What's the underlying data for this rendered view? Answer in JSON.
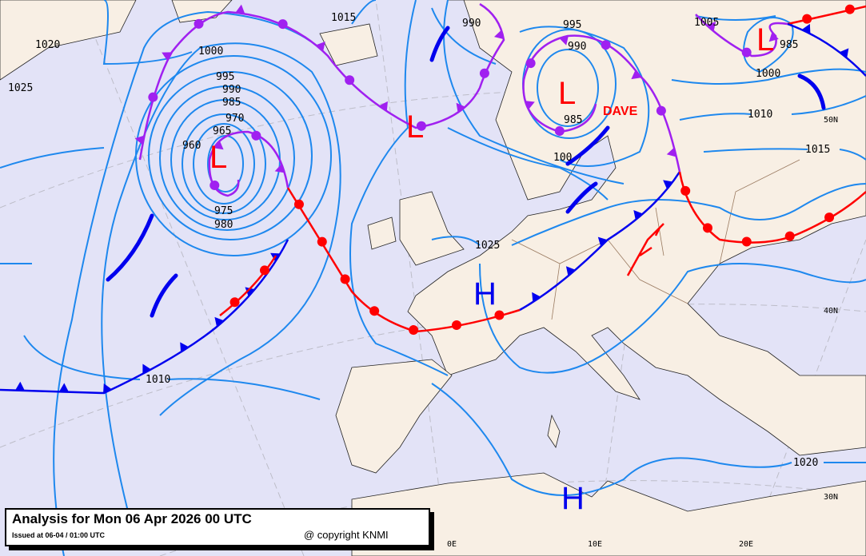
{
  "title": "Analysis for Mon 06 Apr 2026 00 UTC",
  "issued": "Issued at 06-04 / 01:00 UTC",
  "copyright": "@ copyright KNMI",
  "colors": {
    "sea": "#e3e3f7",
    "land": "#f8efe4",
    "isobar": "#1e88ee",
    "cold_front": "#0000ee",
    "warm_front": "#ff0000",
    "occluded_front": "#a020f0"
  },
  "isobar_labels": [
    "1020",
    "1025",
    "1000",
    "995",
    "990",
    "985",
    "970",
    "965",
    "960",
    "975",
    "980",
    "1015",
    "990",
    "995",
    "990",
    "985",
    "1005",
    "1000",
    "1010",
    "1015",
    "1025",
    "1010",
    "1020",
    "100"
  ],
  "pressure_centers": [
    {
      "type": "L",
      "label": "L"
    },
    {
      "type": "L",
      "label": "L"
    },
    {
      "type": "L",
      "label": "L"
    },
    {
      "type": "L",
      "label": "L"
    },
    {
      "type": "H",
      "label": "H"
    },
    {
      "type": "H",
      "label": "H"
    }
  ],
  "center_values": [
    "985"
  ],
  "storm_name": "DAVE",
  "latitude_labels": [
    "50N",
    "40N",
    "30N"
  ],
  "longitude_labels": [
    "0E",
    "10E",
    "20E"
  ]
}
